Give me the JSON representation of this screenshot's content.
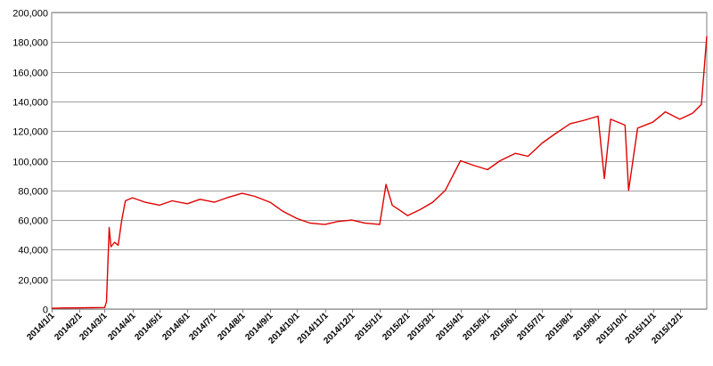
{
  "chart_data": {
    "type": "line",
    "title": "",
    "xlabel": "",
    "ylabel": "",
    "ylim": [
      0,
      200000
    ],
    "y_ticks": [
      0,
      20000,
      40000,
      60000,
      80000,
      100000,
      120000,
      140000,
      160000,
      180000,
      200000
    ],
    "y_tick_labels": [
      "0",
      "20,000",
      "40,000",
      "60,000",
      "80,000",
      "100,000",
      "120,000",
      "140,000",
      "160,000",
      "180,000",
      "200,000"
    ],
    "x_range": [
      "2014/1/1",
      "2015/12/31"
    ],
    "x_tick_labels": [
      "2014/1/1",
      "2014/2/1",
      "2014/3/1",
      "2014/4/1",
      "2014/5/1",
      "2014/6/1",
      "2014/7/1",
      "2014/8/1",
      "2014/9/1",
      "2014/10/1",
      "2014/11/1",
      "2014/12/1",
      "2015/1/1",
      "2015/2/1",
      "2015/3/1",
      "2015/4/1",
      "2015/5/1",
      "2015/6/1",
      "2015/7/1",
      "2015/8/1",
      "2015/9/1",
      "2015/10/1",
      "2015/11/1",
      "2015/12/1"
    ],
    "grid": true,
    "legend": "none",
    "series": [
      {
        "color": "#e00000",
        "points": [
          [
            "2014/1/1",
            500
          ],
          [
            "2014/1/15",
            700
          ],
          [
            "2014/2/1",
            800
          ],
          [
            "2014/2/15",
            900
          ],
          [
            "2014/3/1",
            1000
          ],
          [
            "2014/3/3",
            5000
          ],
          [
            "2014/3/5",
            38000
          ],
          [
            "2014/3/6",
            55000
          ],
          [
            "2014/3/8",
            42000
          ],
          [
            "2014/3/12",
            45000
          ],
          [
            "2014/3/16",
            43000
          ],
          [
            "2014/3/20",
            60000
          ],
          [
            "2014/3/24",
            73000
          ],
          [
            "2014/4/1",
            75000
          ],
          [
            "2014/4/15",
            72000
          ],
          [
            "2014/5/1",
            70000
          ],
          [
            "2014/5/15",
            73000
          ],
          [
            "2014/6/1",
            71000
          ],
          [
            "2014/6/15",
            74000
          ],
          [
            "2014/7/1",
            72000
          ],
          [
            "2014/7/15",
            75000
          ],
          [
            "2014/8/1",
            78000
          ],
          [
            "2014/8/15",
            76000
          ],
          [
            "2014/9/1",
            72000
          ],
          [
            "2014/9/15",
            66000
          ],
          [
            "2014/10/1",
            61000
          ],
          [
            "2014/10/15",
            58000
          ],
          [
            "2014/11/1",
            57000
          ],
          [
            "2014/11/15",
            59000
          ],
          [
            "2014/12/1",
            60000
          ],
          [
            "2014/12/15",
            58000
          ],
          [
            "2015/1/1",
            57000
          ],
          [
            "2015/1/8",
            84000
          ],
          [
            "2015/1/15",
            70000
          ],
          [
            "2015/2/1",
            63000
          ],
          [
            "2015/2/15",
            67000
          ],
          [
            "2015/3/1",
            72000
          ],
          [
            "2015/3/15",
            80000
          ],
          [
            "2015/4/1",
            100000
          ],
          [
            "2015/4/15",
            97000
          ],
          [
            "2015/5/1",
            94000
          ],
          [
            "2015/5/15",
            100000
          ],
          [
            "2015/6/1",
            105000
          ],
          [
            "2015/6/15",
            103000
          ],
          [
            "2015/7/1",
            112000
          ],
          [
            "2015/7/15",
            118000
          ],
          [
            "2015/8/1",
            125000
          ],
          [
            "2015/8/15",
            127000
          ],
          [
            "2015/9/1",
            130000
          ],
          [
            "2015/9/8",
            88000
          ],
          [
            "2015/9/15",
            128000
          ],
          [
            "2015/10/1",
            124000
          ],
          [
            "2015/10/5",
            80000
          ],
          [
            "2015/10/15",
            122000
          ],
          [
            "2015/11/1",
            126000
          ],
          [
            "2015/11/15",
            133000
          ],
          [
            "2015/12/1",
            128000
          ],
          [
            "2015/12/15",
            132000
          ],
          [
            "2015/12/25",
            138000
          ],
          [
            "2015/12/31",
            184000
          ]
        ]
      }
    ]
  }
}
